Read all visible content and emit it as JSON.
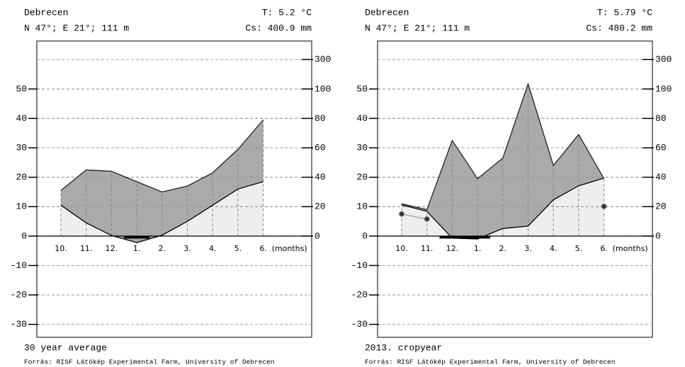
{
  "chart_data": [
    {
      "type": "climate",
      "header": {
        "station": "Debrecen",
        "location": "N 47°; E 21°; 111 m",
        "temperature": "T: 5.2 °C",
        "precipitation": "Cs: 400.9 mm"
      },
      "title": "30 year average",
      "source": "Forrás: RISF Látókép Experimental Farm, University of Debrecen",
      "categories": [
        "10.",
        "11.",
        "12.",
        "1.",
        "2.",
        "3.",
        "4.",
        "5.",
        "6."
      ],
      "x_label": "(months)",
      "series": [
        {
          "color": "#000000",
          "values": [
            10.5,
            4.5,
            0.2,
            -2.2,
            0.3,
            5,
            10.5,
            16,
            18.5
          ]
        },
        {
          "color": "#222222",
          "axis": "y2",
          "values": [
            31,
            45,
            44,
            37,
            30,
            34,
            43,
            59,
            79
          ]
        }
      ],
      "ylim": [
        -34.4,
        66.3
      ],
      "yticks": [
        -30,
        -20,
        -10,
        0,
        10,
        20,
        30,
        40,
        50
      ],
      "y2lim": [
        -68.8,
        426
      ],
      "y2ticks": [
        0,
        20,
        40,
        60,
        80,
        100,
        300
      ],
      "y2scale": "walter-lieth",
      "grid": true,
      "fill_color": "#aaaaaa",
      "under_color": "#eeeeee"
    },
    {
      "type": "climate",
      "header": {
        "station": "Debrecen",
        "location": "N 47°; E 21°; 111 m",
        "temperature": "T: 5.79 °C",
        "precipitation": "Cs: 480.2 mm"
      },
      "title": "2013. cropyear",
      "source": "Forrás: RISF Látókép Experimental Farm, University of Debrecen",
      "categories": [
        "10.",
        "11.",
        "12.",
        "1.",
        "2.",
        "3.",
        "4.",
        "5.",
        "6."
      ],
      "x_label": "(months)",
      "series": [
        {
          "color": "#000000",
          "values": [
            10.6,
            8.4,
            -0.7,
            -1,
            2.6,
            3.4,
            12.3,
            17.1,
            19.7
          ]
        },
        {
          "color": "#222222",
          "axis": "y2",
          "values": [
            22,
            18,
            65,
            39,
            53,
            134,
            48,
            69,
            39
          ]
        },
        {
          "color": "#333333",
          "marker": true,
          "values": [
            7.5,
            5.8,
            null,
            null,
            null,
            null,
            null,
            null,
            10.1
          ]
        }
      ],
      "ylim": [
        -34.4,
        66.3
      ],
      "yticks": [
        -30,
        -20,
        -10,
        0,
        10,
        20,
        30,
        40,
        50
      ],
      "y2lim": [
        -68.8,
        426
      ],
      "y2ticks": [
        0,
        20,
        40,
        60,
        80,
        100,
        300
      ],
      "y2scale": "walter-lieth",
      "grid": true,
      "fill_color": "#aaaaaa",
      "under_color": "#eeeeee"
    }
  ]
}
